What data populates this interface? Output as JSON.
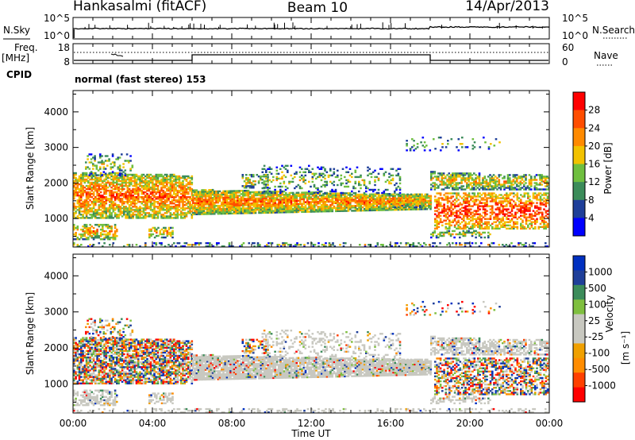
{
  "header": {
    "title": "Hankasalmi (fitACF)",
    "beam": "Beam 10",
    "date": "14/Apr/2013"
  },
  "panels": {
    "noise": {
      "left_label": "N.Sky",
      "right_label": "N.Search",
      "left_ticks": [
        "10^5",
        "10^0"
      ],
      "right_ticks": [
        "10^5",
        "10^0"
      ]
    },
    "freq": {
      "left_label_1": "Freq.",
      "left_label_2": "[MHz]",
      "left_ticks": [
        "18",
        "8"
      ],
      "right_label": "Nave",
      "right_ticks": [
        "60",
        "0"
      ]
    },
    "cpid": {
      "label": "CPID",
      "text": "normal (fast stereo) 153"
    }
  },
  "colors": {
    "power_scale": [
      "#0000ff",
      "#1f3f99",
      "#3c8c5a",
      "#6fbf3f",
      "#f2c200",
      "#ff8a00",
      "#ff4d00",
      "#ff0000"
    ],
    "velocity_scale": [
      "#ff0000",
      "#ff4000",
      "#ff8c00",
      "#f0a000",
      "#c8c8c0",
      "#c8c8c0",
      "#7fbf3f",
      "#3c8c5a",
      "#1f3f99",
      "#0030c0"
    ],
    "ground_scatter": "#c8c8c0"
  },
  "chart_data": [
    {
      "type": "heatmap",
      "name": "power",
      "ylabel": "Slant Range [km]",
      "yticks": [
        "1000",
        "2000",
        "3000",
        "4000"
      ],
      "ylim": [
        200,
        4600
      ],
      "xlim": [
        "00:00",
        "24:00"
      ],
      "colorbar": {
        "label": "Power [dB]",
        "ticks": [
          "4",
          "8",
          "12",
          "16",
          "20",
          "24",
          "28"
        ]
      }
    },
    {
      "type": "heatmap",
      "name": "velocity",
      "ylabel": "Slant Range [km]",
      "yticks": [
        "1000",
        "2000",
        "3000",
        "4000"
      ],
      "ylim": [
        200,
        4600
      ],
      "xlim": [
        "00:00",
        "24:00"
      ],
      "xlabel": "Time UT",
      "xticks": [
        "00:00",
        "04:00",
        "08:00",
        "12:00",
        "16:00",
        "20:00",
        "00:00"
      ],
      "colorbar": {
        "label_main": "Velocity",
        "label_unit": "[m s⁻¹]",
        "ticks": [
          "1000",
          "500",
          "100",
          "25",
          "-25",
          "-100",
          "-500",
          "-1000"
        ]
      }
    }
  ]
}
